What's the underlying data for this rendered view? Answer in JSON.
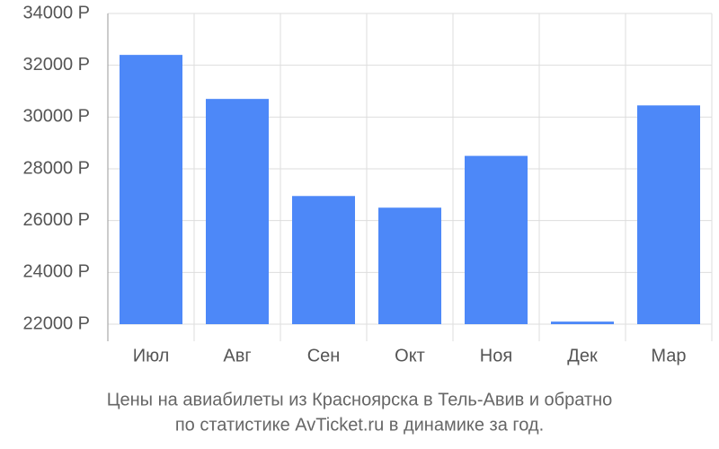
{
  "chart_data": {
    "type": "bar",
    "caption": [
      "Цены на авиабилеты из Красноярска в Тель-Авив и обратно",
      "по статистике AvTicket.ru в динамике за год."
    ],
    "categories": [
      "Июл",
      "Авг",
      "Сен",
      "Окт",
      "Ноя",
      "Дек",
      "Мар"
    ],
    "values": [
      32400,
      30700,
      26950,
      26500,
      28500,
      22100,
      30450
    ],
    "color": "#4d88f8",
    "ylim": [
      22000,
      34000
    ],
    "yticks": [
      {
        "value": 22000,
        "label": "22000 Р"
      },
      {
        "value": 24000,
        "label": "24000 Р"
      },
      {
        "value": 26000,
        "label": "26000 Р"
      },
      {
        "value": 28000,
        "label": "28000 Р"
      },
      {
        "value": 30000,
        "label": "30000 Р"
      },
      {
        "value": 32000,
        "label": "32000 Р"
      },
      {
        "value": 34000,
        "label": "34000 Р"
      }
    ],
    "grid": true
  }
}
